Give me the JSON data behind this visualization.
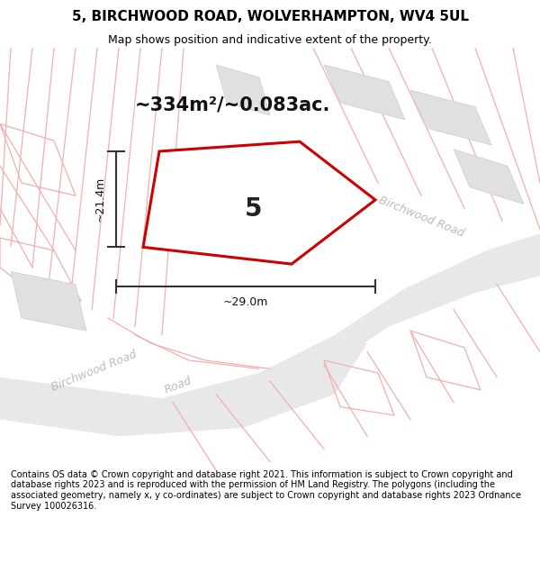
{
  "title": "5, BIRCHWOOD ROAD, WOLVERHAMPTON, WV4 5UL",
  "subtitle": "Map shows position and indicative extent of the property.",
  "area_text": "~334m²/~0.083ac.",
  "house_number": "5",
  "dim_width": "~29.0m",
  "dim_height": "~21.4m",
  "footer": "Contains OS data © Crown copyright and database right 2021. This information is subject to Crown copyright and database rights 2023 and is reproduced with the permission of HM Land Registry. The polygons (including the associated geometry, namely x, y co-ordinates) are subject to Crown copyright and database rights 2023 Ordnance Survey 100026316.",
  "bg_color": "#ffffff",
  "plot_color": "#cc0000",
  "road_color_light": "#f0b0b0",
  "building_color": "#e0e0e0",
  "building_edge": "#cccccc",
  "road_fill": "#e8e8e8",
  "dim_color": "#333333",
  "road_label_color": "#bbbbbb",
  "title_fontsize": 11,
  "subtitle_fontsize": 9,
  "area_fontsize": 15,
  "house_fontsize": 20,
  "dim_fontsize": 9,
  "road_label_fontsize": 9,
  "footer_fontsize": 7
}
